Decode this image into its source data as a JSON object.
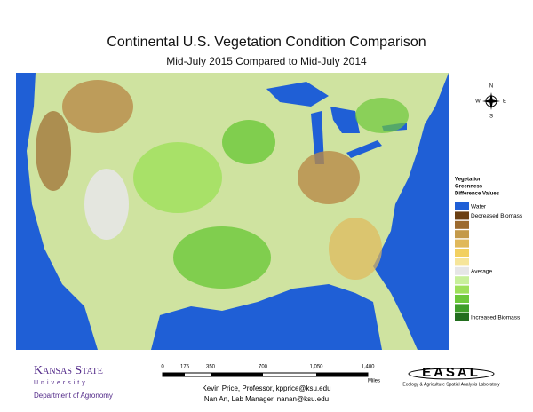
{
  "header": {
    "title": "Continental U.S. Vegetation Condition Comparison",
    "subtitle": "Mid-July 2015 Compared to Mid-July 2014"
  },
  "compass": {
    "n": "N",
    "s": "S",
    "e": "E",
    "w": "W"
  },
  "legend": {
    "title_lines": [
      "Vegetation",
      "Greenness",
      "Difference Values"
    ],
    "swatches": [
      {
        "color": "#1f5fd6",
        "label": "Water"
      },
      {
        "color": "#6b3f12",
        "label": "Decreased Biomass"
      },
      {
        "color": "#9c6a2e"
      },
      {
        "color": "#c49a4a"
      },
      {
        "color": "#e0b85a"
      },
      {
        "color": "#f2d060"
      },
      {
        "color": "#f6e59a"
      },
      {
        "color": "#e6e6e6",
        "label": "Average"
      },
      {
        "color": "#c8f09a"
      },
      {
        "color": "#9ee05a"
      },
      {
        "color": "#6cc83a"
      },
      {
        "color": "#3f9e2a"
      },
      {
        "color": "#226e1e",
        "label": "Increased Biomass"
      }
    ]
  },
  "scale_bar": {
    "labels": [
      "0",
      "175",
      "350",
      "700",
      "1,050",
      "1,400"
    ],
    "unit": "Miles"
  },
  "credits": [
    "Kevin Price, Professor, kpprice@ksu.edu",
    "Nan An, Lab Manager, nanan@ksu.edu"
  ],
  "logo_left": {
    "name": "Kansas State",
    "sub": "University",
    "dept": "Department of Agronomy"
  },
  "logo_right": {
    "name": "EASAL",
    "sub": "Ecology & Agriculture Spatial Analysis Laboratory"
  }
}
